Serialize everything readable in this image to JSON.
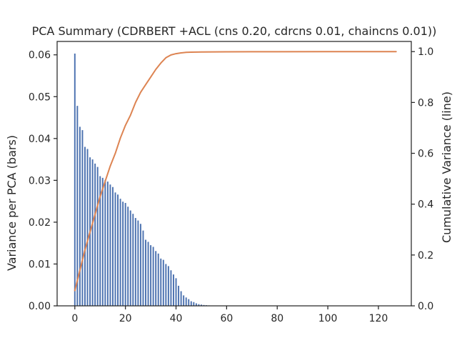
{
  "chart_data": {
    "type": "bar",
    "title": "PCA Summary (CDRBERT +ACL (cns 0.20, cdrcns 0.01, chaincns 0.01))",
    "xlabel": "",
    "ylabel": "Variance per PCA (bars)",
    "y2label": "Cumulative Variance (line)",
    "xlim": [
      -7,
      133
    ],
    "ylim": [
      0,
      0.0632
    ],
    "y2lim": [
      0,
      1.04
    ],
    "xticks": [
      "0",
      "20",
      "40",
      "60",
      "80",
      "100",
      "120"
    ],
    "xtick_values": [
      0,
      20,
      40,
      60,
      80,
      100,
      120
    ],
    "yticks": [
      "0.00",
      "0.01",
      "0.02",
      "0.03",
      "0.04",
      "0.05",
      "0.06"
    ],
    "ytick_values": [
      0,
      0.01,
      0.02,
      0.03,
      0.04,
      0.05,
      0.06
    ],
    "y2ticks": [
      "0.0",
      "0.2",
      "0.4",
      "0.6",
      "0.8",
      "1.0"
    ],
    "y2tick_values": [
      0,
      0.2,
      0.4,
      0.6,
      0.8,
      1.0
    ],
    "grid": false,
    "bar_color": "#4c72b0",
    "line_color": "#dd8452",
    "series": [
      {
        "kind": "bar",
        "x_start": 0,
        "values": [
          0.0603,
          0.0478,
          0.0428,
          0.042,
          0.038,
          0.0375,
          0.0355,
          0.035,
          0.034,
          0.0332,
          0.031,
          0.0306,
          0.0301,
          0.0297,
          0.029,
          0.0284,
          0.0271,
          0.0266,
          0.0256,
          0.0249,
          0.0246,
          0.0237,
          0.0228,
          0.022,
          0.021,
          0.0204,
          0.0196,
          0.018,
          0.0158,
          0.0153,
          0.0145,
          0.0141,
          0.0131,
          0.0125,
          0.0113,
          0.011,
          0.01,
          0.0095,
          0.0085,
          0.0075,
          0.0066,
          0.0048,
          0.0035,
          0.0025,
          0.002,
          0.0016,
          0.0011,
          0.0009,
          0.0006,
          0.0004,
          0.0003,
          0.0002,
          0.00015,
          0.0001,
          8e-05,
          5e-05,
          4e-05,
          3e-05,
          2e-05,
          1e-05
        ]
      },
      {
        "kind": "line",
        "axis": "right",
        "x": [
          0,
          2,
          4,
          6,
          8,
          10,
          12,
          14,
          16,
          18,
          20,
          22,
          24,
          26,
          28,
          30,
          32,
          34,
          36,
          38,
          40,
          42,
          44,
          46,
          50,
          55,
          60,
          70,
          80,
          100,
          127
        ],
        "y": [
          0.06,
          0.14,
          0.22,
          0.29,
          0.36,
          0.43,
          0.49,
          0.55,
          0.6,
          0.66,
          0.71,
          0.75,
          0.8,
          0.84,
          0.87,
          0.9,
          0.93,
          0.955,
          0.976,
          0.987,
          0.992,
          0.995,
          0.997,
          0.998,
          0.9985,
          0.999,
          0.9993,
          0.9995,
          0.9997,
          0.9999,
          1.0
        ]
      }
    ]
  }
}
